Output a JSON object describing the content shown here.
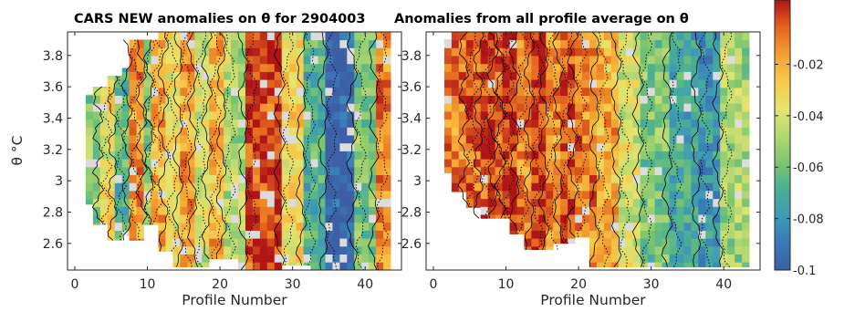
{
  "chart_data": [
    {
      "type": "heatmap",
      "title": "CARS NEW anomalies on θ for 2904003",
      "xlabel": "Profile Number",
      "ylabel": "θ °C",
      "x_ticks": [
        "0",
        "10",
        "20",
        "30",
        "40"
      ],
      "y_ticks": [
        "3.8",
        "3.6",
        "3.4",
        "3.2",
        "3",
        "2.8",
        "2.6"
      ],
      "xlim": [
        -1,
        45
      ],
      "ylim": [
        2.43,
        3.95
      ],
      "profiles": 43,
      "levels": 30,
      "columns": [
        {
          "from": 2,
          "to": 2,
          "ylo": 2.85,
          "yhi": 3.55
        },
        {
          "from": 3,
          "to": 4,
          "ylo": 2.72,
          "yhi": 3.6
        },
        {
          "from": 5,
          "to": 6,
          "ylo": 2.62,
          "yhi": 3.67
        },
        {
          "from": 7,
          "to": 7,
          "ylo": 2.65,
          "yhi": 3.72
        },
        {
          "from": 8,
          "to": 9,
          "ylo": 2.62,
          "yhi": 3.9
        },
        {
          "from": 10,
          "to": 11,
          "ylo": 2.72,
          "yhi": 3.9
        },
        {
          "from": 12,
          "to": 13,
          "ylo": 2.55,
          "yhi": 3.95
        },
        {
          "from": 14,
          "to": 18,
          "ylo": 2.45,
          "yhi": 3.95
        },
        {
          "from": 19,
          "to": 22,
          "ylo": 2.5,
          "yhi": 3.95
        },
        {
          "from": 23,
          "to": 28,
          "ylo": 2.43,
          "yhi": 3.95
        },
        {
          "from": 29,
          "to": 32,
          "ylo": 2.46,
          "yhi": 3.95
        },
        {
          "from": 33,
          "to": 41,
          "ylo": 2.43,
          "yhi": 3.95
        },
        {
          "from": 42,
          "to": 43,
          "ylo": 2.43,
          "yhi": 3.95
        }
      ],
      "bands": [
        {
          "from": 2,
          "to": 3,
          "value": -0.055
        },
        {
          "from": 4,
          "to": 5,
          "value": -0.035
        },
        {
          "from": 6,
          "to": 7,
          "value": -0.065
        },
        {
          "from": 8,
          "to": 9,
          "value": -0.015
        },
        {
          "from": 10,
          "to": 10,
          "value": -0.055
        },
        {
          "from": 11,
          "to": 12,
          "value": -0.02
        },
        {
          "from": 13,
          "to": 14,
          "value": -0.032
        },
        {
          "from": 15,
          "to": 16,
          "value": -0.016
        },
        {
          "from": 17,
          "to": 18,
          "value": -0.042
        },
        {
          "from": 19,
          "to": 20,
          "value": -0.022
        },
        {
          "from": 21,
          "to": 23,
          "value": -0.048
        },
        {
          "from": 24,
          "to": 28,
          "value": 0.0
        },
        {
          "from": 29,
          "to": 31,
          "value": -0.032
        },
        {
          "from": 32,
          "to": 34,
          "value": -0.068
        },
        {
          "from": 35,
          "to": 38,
          "value": -0.098
        },
        {
          "from": 39,
          "to": 41,
          "value": -0.058
        },
        {
          "from": 42,
          "to": 43,
          "value": -0.012
        }
      ]
    },
    {
      "type": "heatmap",
      "title": "Anomalies from all profile average on θ",
      "xlabel": "Profile Number",
      "ylabel": "",
      "x_ticks": [
        "0",
        "10",
        "20",
        "30",
        "40"
      ],
      "y_ticks": [
        "3.8",
        "3.6",
        "3.4",
        "3.2",
        "3",
        "2.8",
        "2.6"
      ],
      "xlim": [
        -1,
        45
      ],
      "ylim": [
        2.43,
        3.95
      ],
      "profiles": 43,
      "levels": 30,
      "columns": [
        {
          "from": 2,
          "to": 2,
          "ylo": 3.05,
          "yhi": 3.9
        },
        {
          "from": 3,
          "to": 4,
          "ylo": 2.93,
          "yhi": 3.95
        },
        {
          "from": 5,
          "to": 6,
          "ylo": 2.83,
          "yhi": 3.95
        },
        {
          "from": 7,
          "to": 10,
          "ylo": 2.76,
          "yhi": 3.95
        },
        {
          "from": 11,
          "to": 12,
          "ylo": 2.66,
          "yhi": 3.95
        },
        {
          "from": 13,
          "to": 16,
          "ylo": 2.56,
          "yhi": 3.95
        },
        {
          "from": 17,
          "to": 19,
          "ylo": 2.6,
          "yhi": 3.95
        },
        {
          "from": 20,
          "to": 21,
          "ylo": 2.64,
          "yhi": 3.95
        },
        {
          "from": 22,
          "to": 43,
          "ylo": 2.45,
          "yhi": 3.95
        }
      ],
      "bands": [
        {
          "from": 2,
          "to": 4,
          "value": -0.01
        },
        {
          "from": 5,
          "to": 6,
          "value": -0.004
        },
        {
          "from": 7,
          "to": 8,
          "value": 0.0
        },
        {
          "from": 9,
          "to": 9,
          "value": -0.008
        },
        {
          "from": 10,
          "to": 11,
          "value": 0.0
        },
        {
          "from": 12,
          "to": 13,
          "value": -0.012
        },
        {
          "from": 14,
          "to": 15,
          "value": 0.0
        },
        {
          "from": 16,
          "to": 17,
          "value": -0.014
        },
        {
          "from": 18,
          "to": 19,
          "value": -0.002
        },
        {
          "from": 20,
          "to": 22,
          "value": -0.012
        },
        {
          "from": 23,
          "to": 25,
          "value": -0.02
        },
        {
          "from": 26,
          "to": 28,
          "value": -0.04
        },
        {
          "from": 29,
          "to": 32,
          "value": -0.058
        },
        {
          "from": 33,
          "to": 36,
          "value": -0.072
        },
        {
          "from": 37,
          "to": 39,
          "value": -0.08
        },
        {
          "from": 40,
          "to": 43,
          "value": -0.05
        }
      ]
    }
  ],
  "colorbar": {
    "ticks": [
      "-0.02",
      "-0.04",
      "-0.06",
      "-0.08",
      "-0.1"
    ],
    "range": [
      -0.1,
      0.005
    ],
    "stops": [
      "#3d5fa6",
      "#3a79b8",
      "#3f9ab6",
      "#4aaf93",
      "#7ec66f",
      "#b5d873",
      "#e6e46f",
      "#f7c94a",
      "#f59f30",
      "#e3641e",
      "#b01418"
    ],
    "nan_color": "#dcdcdc",
    "contour_color": "#000000"
  }
}
